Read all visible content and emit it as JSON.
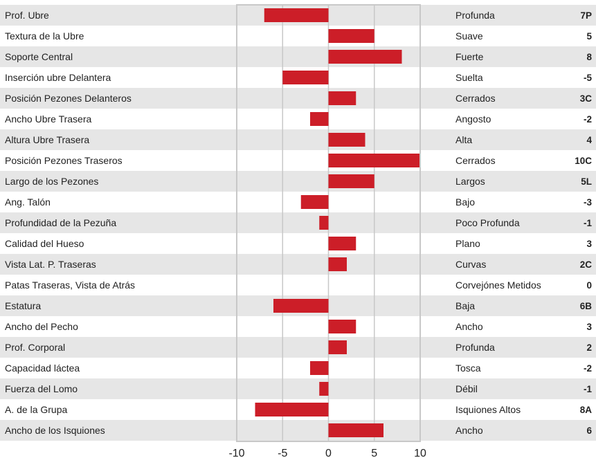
{
  "chart_data": {
    "type": "bar",
    "orientation": "horizontal",
    "title": "",
    "xlabel": "",
    "ylabel": "",
    "xlim": [
      -10,
      10
    ],
    "xticks": [
      -10,
      -5,
      0,
      5,
      10
    ],
    "grid": true,
    "bar_color": "#cc1e28",
    "stripe_color": "#e6e6e6",
    "categories": [
      "Prof. Ubre",
      "Textura de la Ubre",
      "Soporte Central",
      "Inserción ubre Delantera",
      "Posición Pezones Delanteros",
      "Ancho Ubre Trasera",
      "Altura Ubre Trasera",
      "Posición Pezones Traseros",
      "Largo de los Pezones",
      "Ang. Talón",
      "Profundidad de la Pezuña",
      "Calidad del Hueso",
      "Vista Lat. P. Traseras",
      "Patas Traseras, Vista de Atrás",
      "Estatura",
      "Ancho del Pecho",
      "Prof. Corporal",
      "Capacidad láctea",
      "Fuerza del Lomo",
      "A. de la Grupa",
      "Ancho de los Isquiones"
    ],
    "values": [
      -7,
      5,
      8,
      -5,
      3,
      -2,
      4,
      10,
      5,
      -3,
      -1,
      3,
      2,
      0,
      -6,
      3,
      2,
      -2,
      -1,
      -8,
      6
    ],
    "descriptors": [
      "Profunda",
      "Suave",
      "Fuerte",
      "Suelta",
      "Cerrados",
      "Angosto",
      "Alta",
      "Cerrados",
      "Largos",
      "Bajo",
      "Poco Profunda",
      "Plano",
      "Curvas",
      "Corvejónes Metidos",
      "Baja",
      "Ancho",
      "Profunda",
      "Tosca",
      "Débil",
      "Isquiones Altos",
      "Ancho"
    ],
    "scores": [
      "7P",
      "5",
      "8",
      "-5",
      "3C",
      "-2",
      "4",
      "10C",
      "5L",
      "-3",
      "-1",
      "3",
      "2C",
      "0",
      "6B",
      "3",
      "2",
      "-2",
      "-1",
      "8A",
      "6"
    ]
  }
}
